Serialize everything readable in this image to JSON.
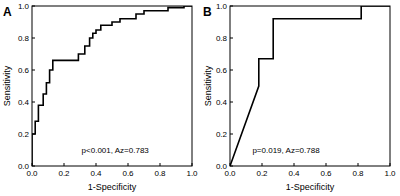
{
  "chart_data": [
    {
      "type": "line",
      "title": "A",
      "xlabel": "1-Specificity",
      "ylabel": "Sensitivity",
      "annotation": "p<0.001, Az=0.783",
      "color": "#000000",
      "x": [
        0,
        0,
        0.02,
        0.02,
        0.04,
        0.04,
        0.07,
        0.07,
        0.09,
        0.09,
        0.11,
        0.11,
        0.13,
        0.13,
        0.29,
        0.29,
        0.33,
        0.33,
        0.36,
        0.36,
        0.38,
        0.38,
        0.4,
        0.4,
        0.43,
        0.43,
        0.5,
        0.5,
        0.55,
        0.55,
        0.65,
        0.65,
        0.7,
        0.7,
        0.85,
        0.85,
        0.95,
        0.95,
        1
      ],
      "values": [
        0,
        0.2,
        0.2,
        0.28,
        0.28,
        0.38,
        0.38,
        0.45,
        0.45,
        0.52,
        0.52,
        0.6,
        0.6,
        0.66,
        0.66,
        0.7,
        0.7,
        0.75,
        0.75,
        0.8,
        0.8,
        0.83,
        0.83,
        0.85,
        0.85,
        0.88,
        0.88,
        0.9,
        0.9,
        0.92,
        0.92,
        0.95,
        0.95,
        0.97,
        0.97,
        0.99,
        0.99,
        1,
        1
      ],
      "xlim": [
        0,
        1
      ],
      "ylim": [
        0,
        1
      ],
      "xticks": [
        {
          "value": 0,
          "label": "0.0"
        },
        {
          "value": 0.2,
          "label": "0.2"
        },
        {
          "value": 0.4,
          "label": "0.4"
        },
        {
          "value": 0.6,
          "label": "0.6"
        },
        {
          "value": 0.8,
          "label": "0.8"
        },
        {
          "value": 1,
          "label": "1.0"
        }
      ],
      "yticks": [
        {
          "value": 0,
          "label": "0.0"
        },
        {
          "value": 0.2,
          "label": "0.2"
        },
        {
          "value": 0.4,
          "label": "0.4"
        },
        {
          "value": 0.6,
          "label": "0.6"
        },
        {
          "value": 0.8,
          "label": "0.8"
        },
        {
          "value": 1,
          "label": "1.0"
        }
      ]
    },
    {
      "type": "line",
      "title": "B",
      "xlabel": "1-Specificity",
      "ylabel": "Sensitivity",
      "annotation": "p=0.019, Az=0.788",
      "color": "#000000",
      "x": [
        0,
        0.18,
        0.18,
        0.27,
        0.27,
        0.82,
        0.82,
        1
      ],
      "values": [
        0,
        0.5,
        0.67,
        0.67,
        0.92,
        0.92,
        1,
        1
      ],
      "xlim": [
        0,
        1
      ],
      "ylim": [
        0,
        1
      ],
      "xticks": [
        {
          "value": 0,
          "label": "0.0"
        },
        {
          "value": 0.2,
          "label": "0.2"
        },
        {
          "value": 0.4,
          "label": "0.4"
        },
        {
          "value": 0.6,
          "label": "0.6"
        },
        {
          "value": 0.8,
          "label": "0.8"
        },
        {
          "value": 1,
          "label": "1.0"
        }
      ],
      "yticks": [
        {
          "value": 0,
          "label": "0.0"
        },
        {
          "value": 0.2,
          "label": "0.2"
        },
        {
          "value": 0.4,
          "label": "0.4"
        },
        {
          "value": 0.6,
          "label": "0.6"
        },
        {
          "value": 0.8,
          "label": "0.8"
        },
        {
          "value": 1,
          "label": "1.0"
        }
      ]
    }
  ]
}
